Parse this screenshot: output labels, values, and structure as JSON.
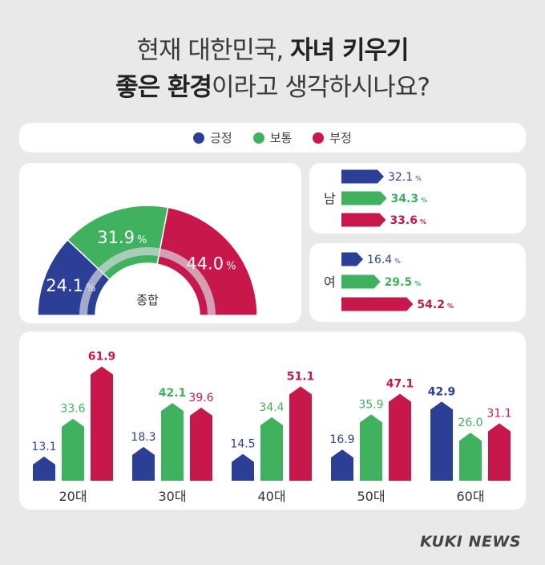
{
  "title": {
    "line1_plain": "현재 대한민국, ",
    "line1_bold": "자녀 키우기",
    "line2_bold": "좋은 환경",
    "line2_plain": "이라고 생각하시나요?"
  },
  "colors": {
    "positive": "#2b3f97",
    "neutral": "#3fb15f",
    "negative": "#c8174b",
    "hole_ring": "#d9d9e0"
  },
  "chart_data": [
    {
      "type": "legend",
      "entries": [
        {
          "name": "긍정",
          "color": "#2b3f97"
        },
        {
          "name": "보통",
          "color": "#3fb15f"
        },
        {
          "name": "부정",
          "color": "#c8174b"
        }
      ]
    },
    {
      "type": "pie",
      "style": "half-donut",
      "center_label": "종합",
      "slices": [
        {
          "name": "긍정",
          "value": 24.1,
          "label": "24.1",
          "color": "#2b3f97"
        },
        {
          "name": "보통",
          "value": 31.9,
          "label": "31.9",
          "color": "#3fb15f"
        },
        {
          "name": "부정",
          "value": 44.0,
          "label": "44.0",
          "color": "#c8174b"
        }
      ],
      "unit": "%"
    },
    {
      "type": "bar",
      "orientation": "horizontal",
      "category": "남",
      "series": [
        {
          "name": "긍정",
          "value": 32.1,
          "label": "32.1",
          "color": "#2b3f97"
        },
        {
          "name": "보통",
          "value": 34.3,
          "label": "34.3",
          "color": "#3fb15f"
        },
        {
          "name": "부정",
          "value": 33.6,
          "label": "33.6",
          "color": "#c8174b"
        }
      ],
      "unit": "%"
    },
    {
      "type": "bar",
      "orientation": "horizontal",
      "category": "여",
      "series": [
        {
          "name": "긍정",
          "value": 16.4,
          "label": "16.4",
          "color": "#2b3f97"
        },
        {
          "name": "보통",
          "value": 29.5,
          "label": "29.5",
          "color": "#3fb15f"
        },
        {
          "name": "부정",
          "value": 54.2,
          "label": "54.2",
          "color": "#c8174b"
        }
      ],
      "unit": "%"
    },
    {
      "type": "bar",
      "categories": [
        "20대",
        "30대",
        "40대",
        "50대",
        "60대"
      ],
      "series": [
        {
          "name": "긍정",
          "color": "#2b3f97",
          "values": [
            13.1,
            18.3,
            14.5,
            16.9,
            42.9
          ],
          "labels": [
            "13.1",
            "18.3",
            "14.5",
            "16.9",
            "42.9"
          ]
        },
        {
          "name": "보통",
          "color": "#3fb15f",
          "values": [
            33.6,
            42.1,
            34.4,
            35.9,
            26.0
          ],
          "labels": [
            "33.6",
            "42.1",
            "34.4",
            "35.9",
            "26.0"
          ]
        },
        {
          "name": "부정",
          "color": "#c8174b",
          "values": [
            61.9,
            39.6,
            51.1,
            47.1,
            31.1
          ],
          "labels": [
            "61.9",
            "39.6",
            "51.1",
            "47.1",
            "31.1"
          ]
        }
      ],
      "ylim": [
        0,
        65
      ]
    }
  ],
  "footer": {
    "brand": "KUKI NEWS"
  }
}
